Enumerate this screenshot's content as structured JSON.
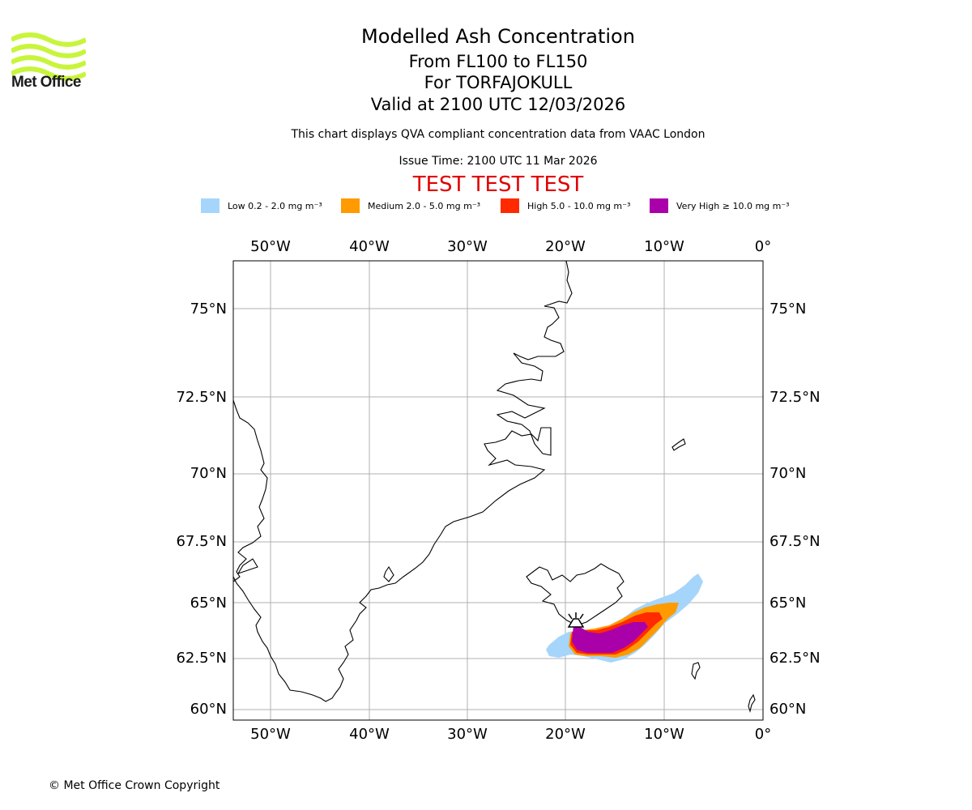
{
  "header": {
    "title": "Modelled Ash Concentration",
    "flight_levels": "From FL100 to FL150",
    "volcano": "For TORFAJOKULL",
    "valid_time": "Valid at 2100 UTC 12/03/2026",
    "description": "This chart displays QVA compliant concentration data from VAAC London",
    "issue_time": "Issue Time: 2100 UTC 11 Mar 2026",
    "test_banner": "TEST TEST TEST"
  },
  "logo": {
    "text": "Met Office",
    "color": "#c8f53c"
  },
  "legend": [
    {
      "label": "Low 0.2 - 2.0 mg m⁻³",
      "color": "#a6d5fb"
    },
    {
      "label": "Medium 2.0 - 5.0 mg m⁻³",
      "color": "#ff9a00"
    },
    {
      "label": "High 5.0 - 10.0 mg m⁻³",
      "color": "#ff2a00"
    },
    {
      "label": "Very High ≥ 10.0 mg m⁻³",
      "color": "#aa00aa"
    }
  ],
  "map": {
    "lon_labels": [
      "50°W",
      "40°W",
      "30°W",
      "20°W",
      "10°W",
      "0°"
    ],
    "lat_labels": [
      "75°N",
      "72.5°N",
      "70°N",
      "67.5°N",
      "65°N",
      "62.5°N",
      "60°N"
    ],
    "volcano_symbol": "volcano-icon"
  },
  "footer": {
    "copyright": "© Met Office Crown Copyright"
  }
}
